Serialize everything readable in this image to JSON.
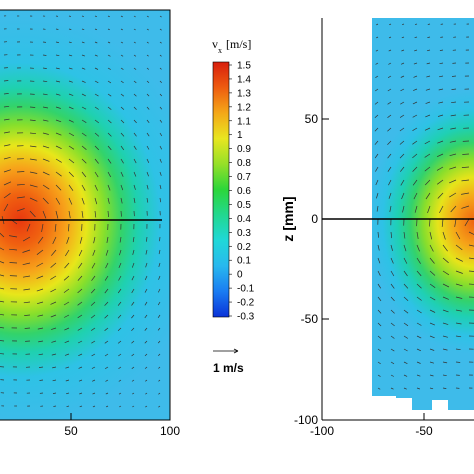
{
  "chart_data": [
    {
      "type": "heatmap",
      "panel": "left",
      "xlim": [
        0,
        100
      ],
      "x_ticks": [
        "50",
        "100"
      ],
      "hot_spot": {
        "x": 22,
        "z": 0,
        "peak_vx": 1.45
      },
      "horizontal_line_z": 0,
      "vectors": true
    },
    {
      "type": "heatmap",
      "panel": "right",
      "ylabel": "z [mm]",
      "xlim": [
        -100,
        0
      ],
      "ylim": [
        -100,
        90
      ],
      "x_ticks": [
        "-100",
        "-50"
      ],
      "y_ticks": [
        "50",
        "0",
        "-50",
        "-100"
      ],
      "hot_spot": {
        "x": 0,
        "z": 10,
        "peak_vx": 1.1
      },
      "horizontal_line_z": 0,
      "vectors": true
    }
  ],
  "colorbar": {
    "title_main": "v",
    "title_sub": "x",
    "title_unit": "[m/s]",
    "min": -0.3,
    "max": 1.5,
    "labels": [
      "1.5",
      "1.4",
      "1.3",
      "1.2",
      "1.1",
      "1",
      "0.9",
      "0.8",
      "0.7",
      "0.6",
      "0.5",
      "0.4",
      "0.3",
      "0.2",
      "0.1",
      "0",
      "-0.1",
      "-0.2",
      "-0.3"
    ]
  },
  "reference_vector": {
    "label": "1 m/s"
  }
}
